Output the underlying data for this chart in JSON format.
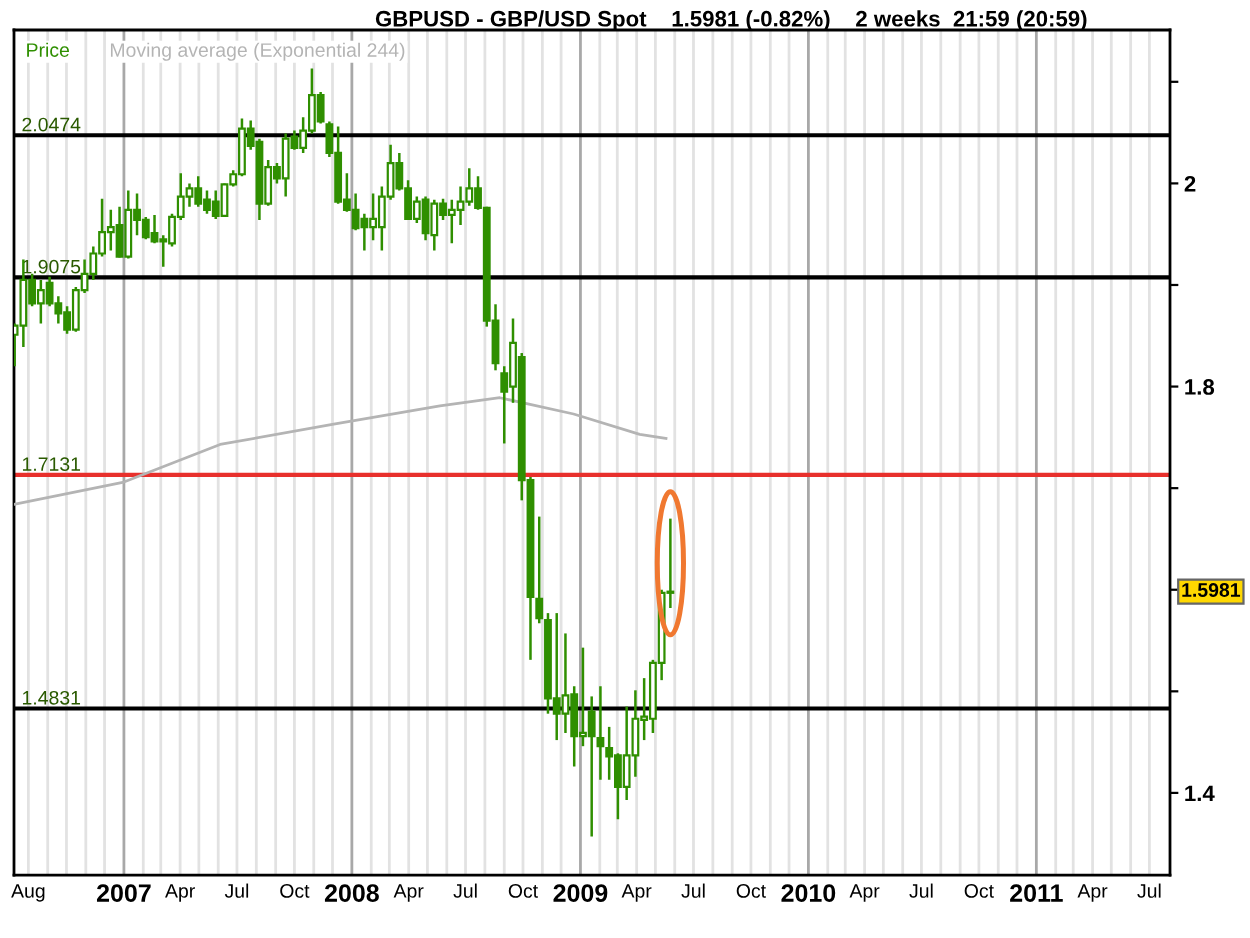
{
  "chart_data": {
    "type": "candlestick",
    "title": "GBPUSD - GBP/USD Spot    1.5981 (-0.82%)    2 weeks  21:59 (20:59)",
    "legend": "top left",
    "grid": "x",
    "series": [
      {
        "name": "Price",
        "color": "#2f8f00",
        "x": [
          "2006-07-10",
          "2006-07-24",
          "2006-08-07",
          "2006-08-21",
          "2006-09-04",
          "2006-09-18",
          "2006-10-02",
          "2006-10-16",
          "2006-10-30",
          "2006-11-13",
          "2006-11-27",
          "2006-12-11",
          "2006-12-25",
          "2007-01-08",
          "2007-01-22",
          "2007-02-05",
          "2007-02-19",
          "2007-03-05",
          "2007-03-19",
          "2007-04-02",
          "2007-04-16",
          "2007-04-30",
          "2007-05-14",
          "2007-05-28",
          "2007-06-11",
          "2007-06-25",
          "2007-07-09",
          "2007-07-23",
          "2007-08-06",
          "2007-08-20",
          "2007-09-03",
          "2007-09-17",
          "2007-10-01",
          "2007-10-15",
          "2007-10-29",
          "2007-11-12",
          "2007-11-26",
          "2007-12-10",
          "2007-12-24",
          "2008-01-07",
          "2008-01-21",
          "2008-02-04",
          "2008-02-18",
          "2008-03-03",
          "2008-03-17",
          "2008-03-31",
          "2008-04-14",
          "2008-04-28",
          "2008-05-12",
          "2008-05-26",
          "2008-06-09",
          "2008-06-23",
          "2008-07-07",
          "2008-07-21",
          "2008-08-04",
          "2008-08-18",
          "2008-09-01",
          "2008-09-15",
          "2008-09-29",
          "2008-10-13",
          "2008-10-27",
          "2008-11-10",
          "2008-11-24",
          "2008-12-08",
          "2008-12-22",
          "2009-01-05",
          "2009-01-19",
          "2009-02-02",
          "2009-02-16",
          "2009-03-02",
          "2009-03-16",
          "2009-03-30",
          "2009-04-13",
          "2009-04-27",
          "2009-05-11",
          "2009-05-25"
        ],
        "ohlc": [
          [
            1.851,
            1.862,
            1.82,
            1.86
          ],
          [
            1.86,
            1.925,
            1.839,
            1.905
          ],
          [
            1.905,
            1.911,
            1.879,
            1.882
          ],
          [
            1.882,
            1.905,
            1.862,
            1.895
          ],
          [
            1.902,
            1.908,
            1.879,
            1.882
          ],
          [
            1.882,
            1.889,
            1.862,
            1.872
          ],
          [
            1.873,
            1.879,
            1.852,
            1.856
          ],
          [
            1.856,
            1.898,
            1.854,
            1.895
          ],
          [
            1.895,
            1.925,
            1.892,
            1.911
          ],
          [
            1.911,
            1.938,
            1.905,
            1.931
          ],
          [
            1.931,
            1.985,
            1.928,
            1.952
          ],
          [
            1.952,
            1.974,
            1.934,
            1.957
          ],
          [
            1.959,
            1.977,
            1.927,
            1.928
          ],
          [
            1.928,
            1.993,
            1.926,
            1.974
          ],
          [
            1.974,
            1.99,
            1.949,
            1.964
          ],
          [
            1.964,
            1.967,
            1.945,
            1.947
          ],
          [
            1.951,
            1.969,
            1.941,
            1.943
          ],
          [
            1.943,
            1.949,
            1.918,
            1.945
          ],
          [
            1.941,
            1.97,
            1.938,
            1.967
          ],
          [
            1.967,
            2.01,
            1.964,
            1.987
          ],
          [
            1.987,
            2.0,
            1.977,
            1.995
          ],
          [
            1.995,
            2.007,
            1.977,
            1.98
          ],
          [
            1.984,
            1.993,
            1.97,
            1.974
          ],
          [
            1.982,
            1.993,
            1.965,
            1.968
          ],
          [
            1.968,
            2.0,
            1.967,
            1.999
          ],
          [
            1.999,
            2.013,
            1.997,
            2.009
          ],
          [
            2.009,
            2.064,
            2.007,
            2.054
          ],
          [
            2.054,
            2.062,
            2.033,
            2.037
          ],
          [
            2.041,
            2.044,
            1.964,
            1.98
          ],
          [
            1.98,
            2.023,
            1.978,
            2.016
          ],
          [
            2.016,
            2.02,
            2.0,
            2.005
          ],
          [
            2.005,
            2.049,
            1.987,
            2.044
          ],
          [
            2.046,
            2.052,
            2.033,
            2.035
          ],
          [
            2.035,
            2.065,
            2.03,
            2.052
          ],
          [
            2.052,
            2.113,
            2.049,
            2.087
          ],
          [
            2.087,
            2.09,
            2.059,
            2.061
          ],
          [
            2.058,
            2.061,
            2.026,
            2.03
          ],
          [
            2.03,
            2.056,
            1.98,
            1.982
          ],
          [
            1.984,
            2.01,
            1.972,
            1.974
          ],
          [
            1.974,
            1.99,
            1.954,
            1.956
          ],
          [
            1.965,
            1.97,
            1.934,
            1.957
          ],
          [
            1.957,
            1.99,
            1.944,
            1.965
          ],
          [
            1.957,
            1.997,
            1.934,
            1.987
          ],
          [
            1.987,
            2.038,
            1.984,
            2.02
          ],
          [
            2.02,
            2.03,
            1.993,
            1.995
          ],
          [
            1.995,
            2.003,
            1.964,
            1.965
          ],
          [
            1.965,
            1.987,
            1.961,
            1.982
          ],
          [
            1.984,
            1.987,
            1.944,
            1.951
          ],
          [
            1.949,
            1.984,
            1.934,
            1.98
          ],
          [
            1.98,
            1.985,
            1.964,
            1.969
          ],
          [
            1.969,
            1.984,
            1.941,
            1.974
          ],
          [
            1.974,
            1.997,
            1.959,
            1.982
          ],
          [
            1.982,
            2.015,
            1.978,
            1.995
          ],
          [
            1.995,
            2.007,
            1.974,
            1.976
          ],
          [
            1.976,
            1.977,
            1.859,
            1.865
          ],
          [
            1.865,
            1.881,
            1.816,
            1.823
          ],
          [
            1.813,
            1.82,
            1.744,
            1.795
          ],
          [
            1.8,
            1.867,
            1.784,
            1.843
          ],
          [
            1.829,
            1.833,
            1.688,
            1.708
          ],
          [
            1.708,
            1.711,
            1.531,
            1.593
          ],
          [
            1.591,
            1.672,
            1.567,
            1.572
          ],
          [
            1.57,
            1.577,
            1.478,
            1.493
          ],
          [
            1.493,
            1.577,
            1.452,
            1.478
          ],
          [
            1.478,
            1.557,
            1.459,
            1.496
          ],
          [
            1.497,
            1.505,
            1.426,
            1.456
          ],
          [
            1.456,
            1.543,
            1.446,
            1.459
          ],
          [
            1.48,
            1.495,
            1.357,
            1.456
          ],
          [
            1.454,
            1.505,
            1.413,
            1.446
          ],
          [
            1.444,
            1.465,
            1.413,
            1.436
          ],
          [
            1.437,
            1.439,
            1.374,
            1.406
          ],
          [
            1.406,
            1.485,
            1.393,
            1.437
          ],
          [
            1.437,
            1.501,
            1.416,
            1.473
          ],
          [
            1.472,
            1.513,
            1.452,
            1.475
          ],
          [
            1.473,
            1.531,
            1.459,
            1.528
          ],
          [
            1.528,
            1.6,
            1.511,
            1.597
          ],
          [
            1.597,
            1.67,
            1.582,
            1.5981
          ]
        ]
      },
      {
        "type": "line",
        "name": "Moving average (Exponential 244)",
        "color": "#b4b4b4",
        "x": [
          "2006-07-09",
          "2007-01-01",
          "2007-06-04",
          "2007-12-03",
          "2008-05-21",
          "2008-08-25",
          "2008-12-21",
          "2009-04-06",
          "2009-05-18"
        ],
        "values": [
          1.684,
          1.706,
          1.743,
          1.763,
          1.781,
          1.789,
          1.773,
          1.753,
          1.749
        ]
      }
    ],
    "ref_lines": [
      {
        "axis": "y",
        "value": 2.0474,
        "label": "2.0474",
        "color": "#000000"
      },
      {
        "axis": "y",
        "value": 1.9075,
        "label": "1.9075",
        "color": "#000000"
      },
      {
        "axis": "y",
        "value": 1.7131,
        "label": "1.7131",
        "color": "#e8302c"
      },
      {
        "axis": "y",
        "value": 1.4831,
        "label": "1.4831",
        "color": "#000000"
      }
    ],
    "annotations": [
      "1.5981"
    ],
    "xlim": [
      "2006-07-09",
      "2011-08-03"
    ],
    "ylim": [
      1.319,
      2.151
    ],
    "yticks": [
      {
        "value": 1.4,
        "label": "1.4"
      },
      {
        "value": 1.5,
        "label": null
      },
      {
        "value": 1.6,
        "label": null
      },
      {
        "value": 1.7,
        "label": null
      },
      {
        "value": 1.8,
        "label": "1.8"
      },
      {
        "value": 1.9,
        "label": null
      },
      {
        "value": 2.0,
        "label": "2"
      },
      {
        "value": 2.1,
        "label": null
      }
    ],
    "xticks": [
      {
        "value": "2006-08-01",
        "label": "Aug"
      },
      {
        "value": "2006-09-01",
        "label": null
      },
      {
        "value": "2006-10-01",
        "label": null
      },
      {
        "value": "2006-11-01",
        "label": null
      },
      {
        "value": "2006-12-01",
        "label": null
      },
      {
        "value": "2007-01-01",
        "label": "2007"
      },
      {
        "value": "2007-02-01",
        "label": null
      },
      {
        "value": "2007-03-01",
        "label": null
      },
      {
        "value": "2007-04-01",
        "label": "Apr"
      },
      {
        "value": "2007-05-01",
        "label": null
      },
      {
        "value": "2007-06-01",
        "label": null
      },
      {
        "value": "2007-07-01",
        "label": "Jul"
      },
      {
        "value": "2007-08-01",
        "label": null
      },
      {
        "value": "2007-09-01",
        "label": null
      },
      {
        "value": "2007-10-01",
        "label": "Oct"
      },
      {
        "value": "2007-11-01",
        "label": null
      },
      {
        "value": "2007-12-01",
        "label": null
      },
      {
        "value": "2008-01-01",
        "label": "2008"
      },
      {
        "value": "2008-02-01",
        "label": null
      },
      {
        "value": "2008-03-01",
        "label": null
      },
      {
        "value": "2008-04-01",
        "label": "Apr"
      },
      {
        "value": "2008-05-01",
        "label": null
      },
      {
        "value": "2008-06-01",
        "label": null
      },
      {
        "value": "2008-07-01",
        "label": "Jul"
      },
      {
        "value": "2008-08-01",
        "label": null
      },
      {
        "value": "2008-09-01",
        "label": null
      },
      {
        "value": "2008-10-01",
        "label": "Oct"
      },
      {
        "value": "2008-11-01",
        "label": null
      },
      {
        "value": "2008-12-01",
        "label": null
      },
      {
        "value": "2009-01-01",
        "label": "2009"
      },
      {
        "value": "2009-02-01",
        "label": null
      },
      {
        "value": "2009-03-01",
        "label": null
      },
      {
        "value": "2009-04-01",
        "label": "Apr"
      },
      {
        "value": "2009-05-01",
        "label": null
      },
      {
        "value": "2009-06-01",
        "label": null
      },
      {
        "value": "2009-07-01",
        "label": "Jul"
      },
      {
        "value": "2009-08-01",
        "label": null
      },
      {
        "value": "2009-09-01",
        "label": null
      },
      {
        "value": "2009-10-01",
        "label": "Oct"
      },
      {
        "value": "2009-11-01",
        "label": null
      },
      {
        "value": "2009-12-01",
        "label": null
      },
      {
        "value": "2010-01-01",
        "label": "2010"
      },
      {
        "value": "2010-02-01",
        "label": null
      },
      {
        "value": "2010-03-01",
        "label": null
      },
      {
        "value": "2010-04-01",
        "label": "Apr"
      },
      {
        "value": "2010-05-01",
        "label": null
      },
      {
        "value": "2010-06-01",
        "label": null
      },
      {
        "value": "2010-07-01",
        "label": "Jul"
      },
      {
        "value": "2010-08-01",
        "label": null
      },
      {
        "value": "2010-09-01",
        "label": null
      },
      {
        "value": "2010-10-01",
        "label": "Oct"
      },
      {
        "value": "2010-11-01",
        "label": null
      },
      {
        "value": "2010-12-01",
        "label": null
      },
      {
        "value": "2011-01-01",
        "label": "2011"
      },
      {
        "value": "2011-02-01",
        "label": null
      },
      {
        "value": "2011-03-01",
        "label": null
      },
      {
        "value": "2011-04-01",
        "label": "Apr"
      },
      {
        "value": "2011-05-01",
        "label": null
      },
      {
        "value": "2011-06-01",
        "label": null
      },
      {
        "value": "2011-07-01",
        "label": "Jul"
      }
    ]
  }
}
